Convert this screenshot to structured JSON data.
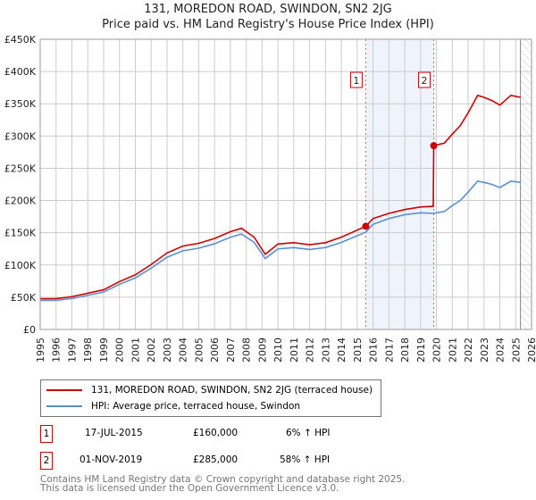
{
  "chart_data": {
    "type": "line",
    "title": "131, MOREDON ROAD, SWINDON, SN2 2JG",
    "subtitle": "Price paid vs. HM Land Registry's House Price Index (HPI)",
    "xlim": [
      1995,
      2026
    ],
    "ylim": [
      0,
      450000
    ],
    "x_ticks": [
      "1995",
      "1996",
      "1997",
      "1998",
      "1999",
      "2000",
      "2001",
      "2002",
      "2003",
      "2004",
      "2005",
      "2006",
      "2007",
      "2008",
      "2009",
      "2010",
      "2011",
      "2012",
      "2013",
      "2014",
      "2015",
      "2016",
      "2017",
      "2018",
      "2019",
      "2020",
      "2021",
      "2022",
      "2023",
      "2024",
      "2025",
      "2026"
    ],
    "y_ticks": [
      {
        "v": 0,
        "label": "£0"
      },
      {
        "v": 50000,
        "label": "£50K"
      },
      {
        "v": 100000,
        "label": "£100K"
      },
      {
        "v": 150000,
        "label": "£150K"
      },
      {
        "v": 200000,
        "label": "£200K"
      },
      {
        "v": 250000,
        "label": "£250K"
      },
      {
        "v": 300000,
        "label": "£300K"
      },
      {
        "v": 350000,
        "label": "£350K"
      },
      {
        "v": 400000,
        "label": "£400K"
      },
      {
        "v": 450000,
        "label": "£450K"
      }
    ],
    "grid": true,
    "series": [
      {
        "name": "131, MOREDON ROAD, SWINDON, SN2 2JG (terraced house)",
        "color": "#cc0000",
        "x": [
          1995,
          1996,
          1997,
          1998,
          1999,
          2000,
          2001,
          2002,
          2003,
          2004,
          2005,
          2006,
          2007,
          2007.7,
          2008.5,
          2009.2,
          2010,
          2011,
          2012,
          2013,
          2014,
          2015.54,
          2016,
          2017,
          2018,
          2019,
          2019.8,
          2019.83,
          2020.5,
          2021,
          2021.5,
          2022,
          2022.6,
          2023,
          2023.5,
          2024,
          2024.7,
          2025.3
        ],
        "y": [
          47700,
          47700,
          50900,
          56200,
          61500,
          74200,
          84800,
          100700,
          118700,
          129300,
          133600,
          141000,
          151600,
          156900,
          143100,
          116600,
          132500,
          134600,
          131400,
          134600,
          143100,
          160000,
          172000,
          180000,
          186000,
          190000,
          191000,
          285000,
          289000,
          303000,
          316000,
          336000,
          363000,
          360000,
          355000,
          348000,
          363000,
          360000
        ]
      },
      {
        "name": "HPI: Average price, terraced house, Swindon",
        "color": "#5b8fd4",
        "x": [
          1995,
          1996,
          1997,
          1998,
          1999,
          2000,
          2001,
          2002,
          2003,
          2004,
          2005,
          2006,
          2007,
          2007.7,
          2008.5,
          2009.2,
          2010,
          2011,
          2012,
          2013,
          2014,
          2015.54,
          2016,
          2017,
          2018,
          2019,
          2019.8,
          2020.5,
          2021,
          2021.5,
          2022,
          2022.6,
          2023,
          2023.5,
          2024,
          2024.7,
          2025.3
        ],
        "y": [
          45000,
          45000,
          48000,
          53000,
          58000,
          70000,
          80000,
          95000,
          112000,
          122000,
          126000,
          133000,
          143000,
          148000,
          135000,
          110000,
          125000,
          127000,
          124000,
          127000,
          135000,
          151000,
          163000,
          172000,
          178000,
          181000,
          180000,
          183000,
          192000,
          200000,
          213000,
          230000,
          228000,
          225000,
          220000,
          230000,
          228000
        ]
      }
    ],
    "sales": [
      {
        "n": "1",
        "x": 2015.54,
        "y": 160000
      },
      {
        "n": "2",
        "x": 2019.83,
        "y": 285000
      }
    ],
    "data_end": 2025.3
  },
  "transactions": [
    {
      "n": "1",
      "date": "17-JUL-2015",
      "price": "£160,000",
      "hpi": "6% ↑ HPI"
    },
    {
      "n": "2",
      "date": "01-NOV-2019",
      "price": "£285,000",
      "hpi": "58% ↑ HPI"
    }
  ],
  "footer": [
    "Contains HM Land Registry data © Crown copyright and database right 2025.",
    "This data is licensed under the Open Government Licence v3.0."
  ]
}
